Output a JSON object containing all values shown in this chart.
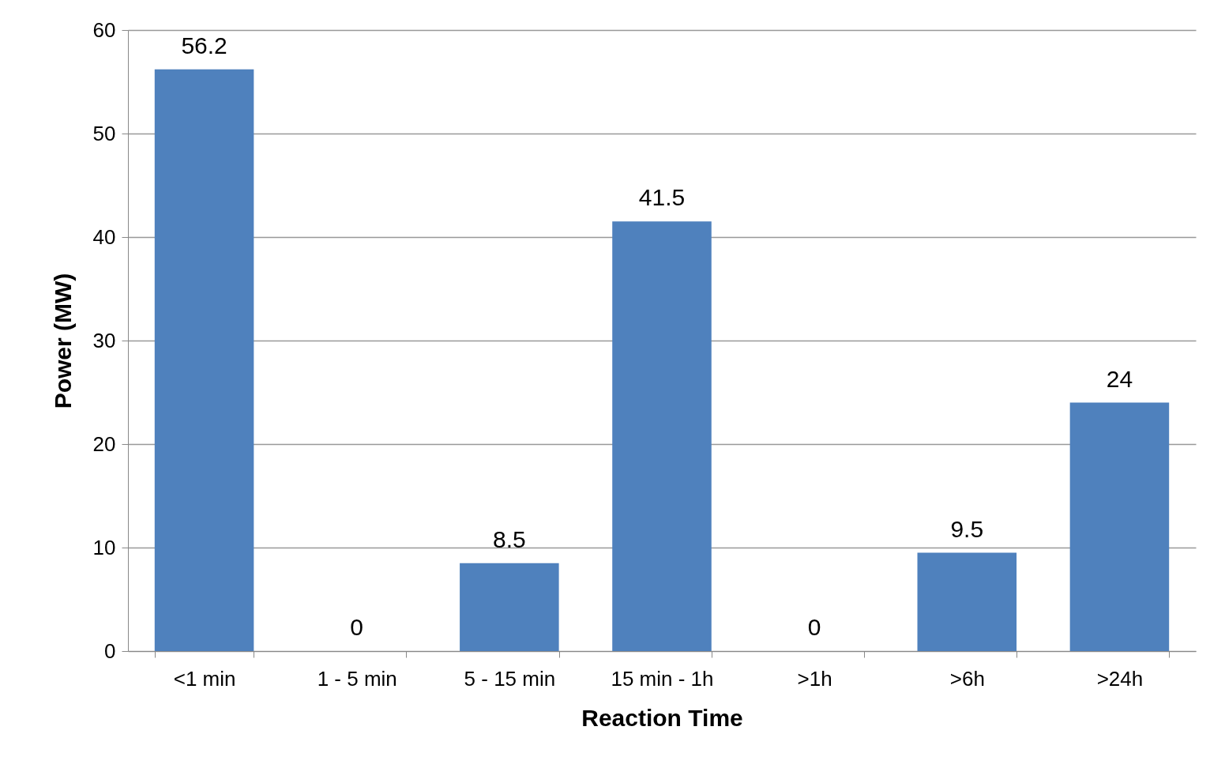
{
  "chart_data": {
    "type": "bar",
    "xlabel": "Reaction Time",
    "ylabel": "Power (MW)",
    "categories": [
      "<1 min",
      "1 - 5 min",
      "5 - 15 min",
      "15 min - 1h",
      ">1h",
      ">6h",
      ">24h"
    ],
    "values": [
      56.2,
      0,
      8.5,
      41.5,
      0,
      9.5,
      24
    ],
    "color": "#4f81bd",
    "ylim": [
      0,
      60
    ],
    "yticks": [
      0,
      10,
      20,
      30,
      40,
      50,
      60
    ],
    "grid": "y",
    "data_labels": true
  }
}
